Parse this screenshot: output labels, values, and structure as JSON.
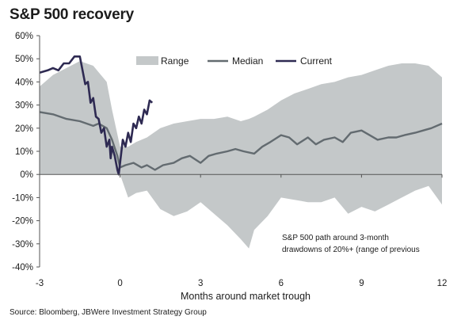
{
  "chart_data": {
    "type": "area",
    "title": "S&P 500 recovery",
    "xlabel": "Months around market trough",
    "ylabel": "",
    "xlim": [
      -3,
      12
    ],
    "ylim": [
      -40,
      60
    ],
    "x_ticks": [
      {
        "value": -3,
        "label": "-3"
      },
      {
        "value": 0,
        "label": "0"
      },
      {
        "value": 3,
        "label": "3"
      },
      {
        "value": 6,
        "label": "6"
      },
      {
        "value": 9,
        "label": "9"
      },
      {
        "value": 12,
        "label": "12"
      }
    ],
    "y_ticks": [
      {
        "value": 60,
        "label": "60%"
      },
      {
        "value": 50,
        "label": "50%"
      },
      {
        "value": 40,
        "label": "40%"
      },
      {
        "value": 30,
        "label": "30%"
      },
      {
        "value": 20,
        "label": "20%"
      },
      {
        "value": 10,
        "label": "10%"
      },
      {
        "value": 0,
        "label": "0%"
      },
      {
        "value": -10,
        "label": "-10%"
      },
      {
        "value": -20,
        "label": "-20%"
      },
      {
        "value": -30,
        "label": "-30%"
      },
      {
        "value": -40,
        "label": "-40%"
      }
    ],
    "grid": false,
    "legend_position": "top",
    "annotation": [
      "S&P 500 path around 3-month",
      "drawdowns of 20%+ (range of previous"
    ],
    "source": "Source: Bloomberg, JBWere Investment Strategy Group",
    "series": [
      {
        "name": "Range",
        "kind": "band",
        "color": "#c4c8c9",
        "x": [
          -3,
          -2.5,
          -2,
          -1.5,
          -1,
          -0.5,
          -0.3,
          0,
          0.3,
          0.6,
          1,
          1.5,
          2,
          2.5,
          3,
          3.5,
          4,
          4.5,
          4.8,
          5,
          5.5,
          6,
          6.5,
          7,
          7.5,
          8,
          8.5,
          9,
          9.5,
          10,
          10.5,
          11,
          11.5,
          12
        ],
        "upper": [
          38,
          43,
          46,
          49,
          47,
          40,
          28,
          12,
          12,
          14,
          16,
          20,
          22,
          23,
          24,
          24,
          25,
          23,
          24,
          25,
          28,
          32,
          35,
          37,
          39,
          40,
          42,
          43,
          45,
          47,
          48,
          48,
          47,
          42
        ],
        "lower": [
          0,
          0,
          0,
          0,
          0,
          0,
          0,
          0,
          -10,
          -8,
          -7,
          -15,
          -18,
          -16,
          -12,
          -17,
          -22,
          -28,
          -32,
          -24,
          -18,
          -10,
          -11,
          -12,
          -12,
          -10,
          -17,
          -14,
          -16,
          -13,
          -10,
          -7,
          -5,
          -13
        ]
      },
      {
        "name": "Median",
        "kind": "line",
        "color": "#636b70",
        "x": [
          -3,
          -2.5,
          -2,
          -1.5,
          -1,
          -0.8,
          -0.5,
          -0.3,
          -0.1,
          0,
          0.2,
          0.5,
          0.8,
          1,
          1.3,
          1.6,
          2,
          2.3,
          2.6,
          3,
          3.3,
          3.6,
          4,
          4.3,
          4.6,
          5,
          5.3,
          5.6,
          6,
          6.3,
          6.6,
          7,
          7.3,
          7.6,
          8,
          8.3,
          8.6,
          9,
          9.3,
          9.6,
          10,
          10.3,
          10.6,
          11,
          11.3,
          11.6,
          12
        ],
        "y": [
          27,
          26,
          24,
          23,
          21,
          22,
          20,
          15,
          8,
          3,
          4,
          5,
          3,
          4,
          2,
          4,
          5,
          7,
          8,
          5,
          8,
          9,
          10,
          11,
          10,
          9,
          12,
          14,
          17,
          16,
          13,
          16,
          13,
          15,
          16,
          14,
          18,
          19,
          17,
          15,
          16,
          16,
          17,
          18,
          19,
          20,
          22
        ]
      },
      {
        "name": "Current",
        "kind": "line",
        "color": "#2e2a52",
        "x": [
          -3,
          -2.7,
          -2.5,
          -2.3,
          -2.1,
          -1.9,
          -1.7,
          -1.5,
          -1.3,
          -1.2,
          -1.1,
          -1.0,
          -0.9,
          -0.8,
          -0.7,
          -0.6,
          -0.5,
          -0.4,
          -0.35,
          -0.3,
          -0.2,
          -0.1,
          -0.05,
          0,
          0.1,
          0.2,
          0.3,
          0.4,
          0.5,
          0.6,
          0.7,
          0.8,
          0.9,
          1.0,
          1.1,
          1.2
        ],
        "y": [
          44,
          45,
          46,
          45,
          48,
          48,
          51,
          51,
          39,
          40,
          31,
          33,
          25,
          24,
          18,
          20,
          12,
          15,
          7,
          12,
          8,
          2,
          0,
          5,
          15,
          12,
          18,
          14,
          22,
          20,
          25,
          22,
          28,
          26,
          32,
          31
        ]
      }
    ]
  }
}
